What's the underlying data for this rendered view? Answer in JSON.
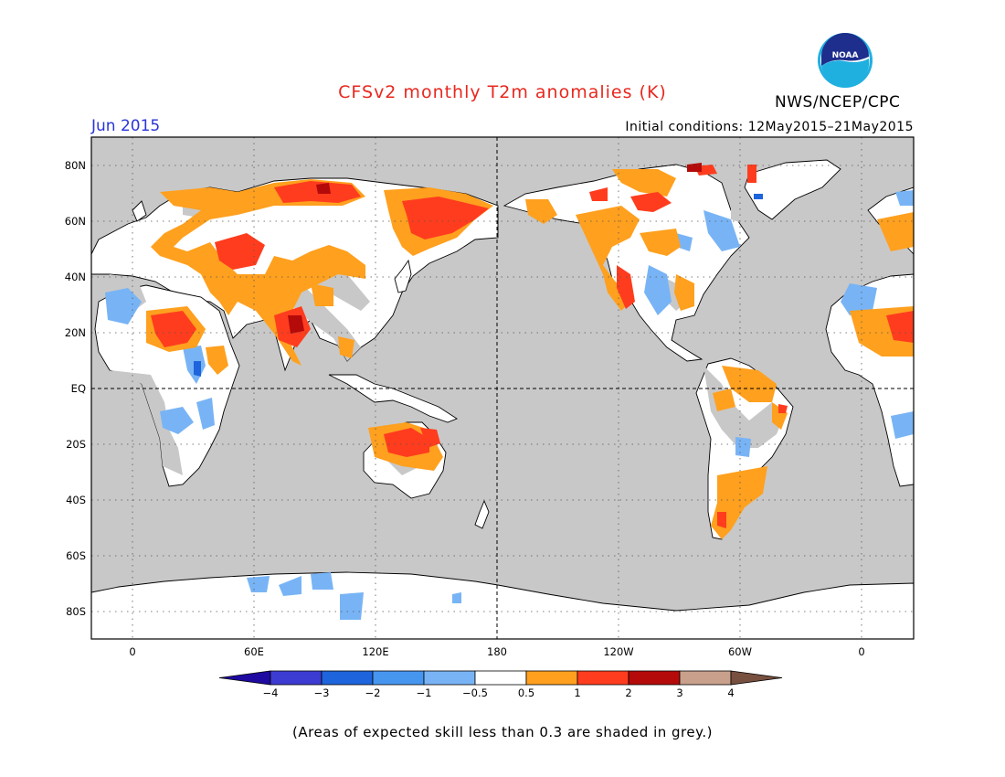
{
  "header": {
    "title": "CFSv2 monthly T2m anomalies (K)",
    "agency": "NWS/NCEP/CPC",
    "period": "Jun 2015",
    "initial_conditions": "Initial conditions: 12May2015–21May2015"
  },
  "map": {
    "projection": "equirectangular, 20W to 20E wrap (380 deg), 90S to 90N",
    "background_color": "#c8c8c8",
    "lat_labels": [
      "80N",
      "60N",
      "40N",
      "20N",
      "EQ",
      "20S",
      "40S",
      "60S",
      "80S"
    ],
    "lon_labels": [
      "0",
      "60E",
      "120E",
      "180",
      "120W",
      "60W",
      "0"
    ],
    "reference_lines": [
      "equator dashed",
      "date line 180 dashed",
      "dotted 20 deg grid"
    ]
  },
  "colorbar": {
    "ticks": [
      "−4",
      "−3",
      "−2",
      "−1",
      "−0.5",
      "0.5",
      "1",
      "2",
      "3",
      "4"
    ],
    "colors": [
      "#1e0aa0",
      "#3c3cd2",
      "#1e64dc",
      "#4696f0",
      "#78b4f5",
      "#ffffff",
      "#ffa01e",
      "#ff3c1e",
      "#b40a0a",
      "#c8a08c",
      "#785040"
    ]
  },
  "footnote": "(Areas of expected skill less than 0.3 are shaded in grey.)",
  "logo": {
    "text": "NOAA"
  }
}
